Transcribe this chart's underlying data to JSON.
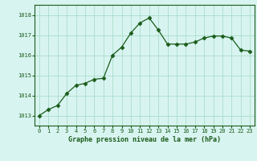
{
  "x": [
    0,
    1,
    2,
    3,
    4,
    5,
    6,
    7,
    8,
    9,
    10,
    11,
    12,
    13,
    14,
    15,
    16,
    17,
    18,
    19,
    20,
    21,
    22,
    23
  ],
  "y": [
    1013.0,
    1013.3,
    1013.5,
    1014.1,
    1014.5,
    1014.6,
    1014.8,
    1014.85,
    1016.0,
    1016.4,
    1017.1,
    1017.6,
    1017.85,
    1017.25,
    1016.55,
    1016.55,
    1016.55,
    1016.65,
    1016.85,
    1016.95,
    1016.95,
    1016.85,
    1016.25,
    1016.2
  ],
  "line_color": "#1a5c1a",
  "marker": "D",
  "marker_size": 2.5,
  "bg_color": "#d8f4f0",
  "grid_color": "#aaddcc",
  "xlabel": "Graphe pression niveau de la mer (hPa)",
  "xlabel_color": "#1a5c1a",
  "tick_color": "#1a5c1a",
  "ylim": [
    1012.5,
    1018.5
  ],
  "yticks": [
    1013,
    1014,
    1015,
    1016,
    1017,
    1018
  ],
  "xlim": [
    -0.5,
    23.5
  ],
  "xticks": [
    0,
    1,
    2,
    3,
    4,
    5,
    6,
    7,
    8,
    9,
    10,
    11,
    12,
    13,
    14,
    15,
    16,
    17,
    18,
    19,
    20,
    21,
    22,
    23
  ]
}
